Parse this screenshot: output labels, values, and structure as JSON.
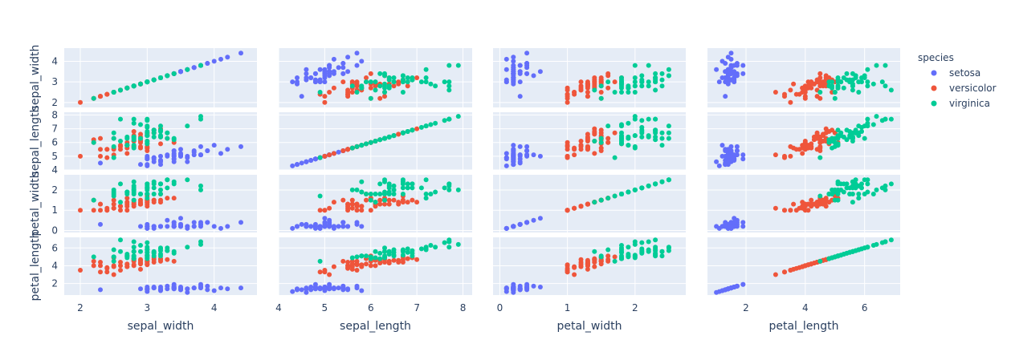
{
  "chart_data": {
    "type": "scatter-matrix",
    "dimensions": [
      "sepal_width",
      "sepal_length",
      "petal_width",
      "petal_length"
    ],
    "axis_ranges": {
      "sepal_width": [
        1.76,
        4.64
      ],
      "sepal_length": [
        4.0,
        8.2
      ],
      "petal_width": [
        -0.1,
        2.75
      ],
      "petal_length": [
        0.7,
        7.2
      ]
    },
    "axis_ticks": {
      "sepal_width": [
        2,
        3,
        4
      ],
      "sepal_length": [
        4,
        5,
        6,
        7,
        8
      ],
      "petal_width": [
        0,
        1,
        2
      ],
      "petal_length": [
        2,
        4,
        6
      ]
    },
    "grid": true,
    "legend": {
      "title": "species",
      "position": "right"
    },
    "series": [
      {
        "name": "setosa",
        "color": "#636efa",
        "points": [
          [
            3.5,
            5.1,
            0.2,
            1.4
          ],
          [
            3.0,
            4.9,
            0.2,
            1.4
          ],
          [
            3.2,
            4.7,
            0.2,
            1.3
          ],
          [
            3.1,
            4.6,
            0.2,
            1.5
          ],
          [
            3.6,
            5.0,
            0.2,
            1.4
          ],
          [
            3.9,
            5.4,
            0.4,
            1.7
          ],
          [
            3.4,
            4.6,
            0.3,
            1.4
          ],
          [
            3.4,
            5.0,
            0.2,
            1.5
          ],
          [
            2.9,
            4.4,
            0.2,
            1.4
          ],
          [
            3.1,
            4.9,
            0.1,
            1.5
          ],
          [
            3.7,
            5.4,
            0.2,
            1.5
          ],
          [
            3.4,
            4.8,
            0.2,
            1.6
          ],
          [
            3.0,
            4.8,
            0.1,
            1.4
          ],
          [
            3.0,
            4.3,
            0.1,
            1.1
          ],
          [
            4.0,
            5.8,
            0.2,
            1.2
          ],
          [
            4.4,
            5.7,
            0.4,
            1.5
          ],
          [
            3.9,
            5.4,
            0.4,
            1.3
          ],
          [
            3.5,
            5.1,
            0.3,
            1.4
          ],
          [
            3.8,
            5.7,
            0.3,
            1.7
          ],
          [
            3.8,
            5.1,
            0.3,
            1.5
          ],
          [
            3.4,
            5.4,
            0.2,
            1.7
          ],
          [
            3.7,
            5.1,
            0.4,
            1.5
          ],
          [
            3.6,
            4.6,
            0.2,
            1.0
          ],
          [
            3.3,
            5.1,
            0.5,
            1.7
          ],
          [
            3.4,
            4.8,
            0.2,
            1.9
          ],
          [
            3.0,
            5.0,
            0.2,
            1.6
          ],
          [
            3.4,
            5.0,
            0.4,
            1.6
          ],
          [
            3.5,
            5.2,
            0.2,
            1.5
          ],
          [
            3.4,
            5.2,
            0.2,
            1.4
          ],
          [
            3.2,
            4.7,
            0.2,
            1.6
          ],
          [
            3.1,
            4.8,
            0.2,
            1.6
          ],
          [
            3.4,
            5.4,
            0.4,
            1.5
          ],
          [
            4.1,
            5.2,
            0.1,
            1.5
          ],
          [
            4.2,
            5.5,
            0.2,
            1.4
          ],
          [
            3.1,
            4.9,
            0.2,
            1.5
          ],
          [
            3.2,
            5.0,
            0.2,
            1.2
          ],
          [
            3.5,
            5.5,
            0.2,
            1.3
          ],
          [
            3.6,
            4.9,
            0.1,
            1.4
          ],
          [
            3.0,
            4.4,
            0.2,
            1.3
          ],
          [
            3.4,
            5.1,
            0.2,
            1.5
          ],
          [
            3.5,
            5.0,
            0.3,
            1.3
          ],
          [
            2.3,
            4.5,
            0.3,
            1.3
          ],
          [
            3.2,
            4.4,
            0.2,
            1.3
          ],
          [
            3.5,
            5.0,
            0.6,
            1.6
          ],
          [
            3.8,
            5.1,
            0.4,
            1.9
          ],
          [
            3.0,
            4.8,
            0.3,
            1.4
          ],
          [
            3.8,
            5.1,
            0.2,
            1.6
          ],
          [
            3.2,
            4.6,
            0.2,
            1.4
          ],
          [
            3.7,
            5.3,
            0.2,
            1.5
          ],
          [
            3.3,
            5.0,
            0.2,
            1.4
          ]
        ]
      },
      {
        "name": "versicolor",
        "color": "#ef553b",
        "points": [
          [
            3.2,
            7.0,
            1.4,
            4.7
          ],
          [
            3.2,
            6.4,
            1.5,
            4.5
          ],
          [
            3.1,
            6.9,
            1.5,
            4.9
          ],
          [
            2.3,
            5.5,
            1.3,
            4.0
          ],
          [
            2.8,
            6.5,
            1.5,
            4.6
          ],
          [
            2.8,
            5.7,
            1.3,
            4.5
          ],
          [
            3.3,
            6.3,
            1.6,
            4.7
          ],
          [
            2.4,
            4.9,
            1.0,
            3.3
          ],
          [
            2.9,
            6.6,
            1.3,
            4.6
          ],
          [
            2.7,
            5.2,
            1.4,
            3.9
          ],
          [
            2.0,
            5.0,
            1.0,
            3.5
          ],
          [
            3.0,
            5.9,
            1.5,
            4.2
          ],
          [
            2.2,
            6.0,
            1.0,
            4.0
          ],
          [
            2.9,
            6.1,
            1.4,
            4.7
          ],
          [
            2.9,
            5.6,
            1.3,
            3.6
          ],
          [
            3.1,
            6.7,
            1.4,
            4.4
          ],
          [
            3.0,
            5.6,
            1.5,
            4.5
          ],
          [
            2.7,
            5.8,
            1.0,
            4.1
          ],
          [
            2.2,
            6.2,
            1.5,
            4.5
          ],
          [
            2.5,
            5.6,
            1.1,
            3.9
          ],
          [
            3.2,
            5.9,
            1.8,
            4.8
          ],
          [
            2.8,
            6.1,
            1.3,
            4.0
          ],
          [
            2.5,
            6.3,
            1.5,
            4.9
          ],
          [
            2.8,
            6.1,
            1.2,
            4.7
          ],
          [
            2.9,
            6.4,
            1.3,
            4.3
          ],
          [
            3.0,
            6.6,
            1.4,
            4.4
          ],
          [
            2.8,
            6.8,
            1.4,
            4.8
          ],
          [
            3.0,
            6.7,
            1.7,
            5.0
          ],
          [
            2.9,
            6.0,
            1.5,
            4.5
          ],
          [
            2.6,
            5.7,
            1.0,
            3.5
          ],
          [
            2.4,
            5.5,
            1.1,
            3.8
          ],
          [
            2.4,
            5.5,
            1.0,
            3.7
          ],
          [
            2.7,
            5.8,
            1.2,
            3.9
          ],
          [
            2.7,
            6.0,
            1.6,
            5.1
          ],
          [
            3.0,
            5.4,
            1.5,
            4.5
          ],
          [
            3.4,
            6.0,
            1.6,
            4.5
          ],
          [
            3.1,
            6.7,
            1.5,
            4.7
          ],
          [
            2.3,
            6.3,
            1.3,
            4.4
          ],
          [
            3.0,
            5.6,
            1.3,
            4.1
          ],
          [
            2.5,
            5.5,
            1.3,
            4.0
          ],
          [
            2.6,
            5.5,
            1.2,
            4.4
          ],
          [
            3.0,
            6.1,
            1.4,
            4.6
          ],
          [
            2.6,
            5.8,
            1.2,
            4.0
          ],
          [
            2.3,
            5.0,
            1.0,
            3.3
          ],
          [
            2.7,
            5.6,
            1.3,
            4.2
          ],
          [
            3.0,
            5.7,
            1.2,
            4.2
          ],
          [
            2.9,
            5.7,
            1.3,
            4.2
          ],
          [
            2.9,
            6.2,
            1.3,
            4.3
          ],
          [
            2.5,
            5.1,
            1.1,
            3.0
          ],
          [
            2.8,
            5.7,
            1.3,
            4.1
          ]
        ]
      },
      {
        "name": "virginica",
        "color": "#00cc96",
        "points": [
          [
            3.3,
            6.3,
            2.5,
            6.0
          ],
          [
            2.7,
            5.8,
            1.9,
            5.1
          ],
          [
            3.0,
            7.1,
            2.1,
            5.9
          ],
          [
            2.9,
            6.3,
            1.8,
            5.6
          ],
          [
            3.0,
            6.5,
            2.2,
            5.8
          ],
          [
            3.0,
            7.6,
            2.1,
            6.6
          ],
          [
            2.5,
            4.9,
            1.7,
            4.5
          ],
          [
            2.9,
            7.3,
            1.8,
            6.3
          ],
          [
            2.5,
            6.7,
            1.8,
            5.8
          ],
          [
            3.6,
            7.2,
            2.5,
            6.1
          ],
          [
            3.2,
            6.5,
            2.0,
            5.1
          ],
          [
            2.7,
            6.4,
            1.9,
            5.3
          ],
          [
            3.0,
            6.8,
            2.1,
            5.5
          ],
          [
            2.5,
            5.7,
            2.0,
            5.0
          ],
          [
            2.8,
            5.8,
            2.4,
            5.1
          ],
          [
            3.2,
            6.4,
            2.3,
            5.3
          ],
          [
            3.0,
            6.5,
            1.8,
            5.5
          ],
          [
            3.8,
            7.7,
            2.2,
            6.7
          ],
          [
            2.6,
            7.7,
            2.3,
            6.9
          ],
          [
            2.2,
            6.0,
            1.5,
            5.0
          ],
          [
            3.2,
            6.9,
            2.3,
            5.7
          ],
          [
            2.8,
            5.6,
            2.0,
            4.9
          ],
          [
            2.8,
            7.7,
            2.0,
            6.7
          ],
          [
            2.7,
            6.3,
            1.8,
            4.9
          ],
          [
            3.3,
            6.7,
            2.1,
            5.7
          ],
          [
            3.2,
            7.2,
            1.8,
            6.0
          ],
          [
            2.8,
            6.2,
            1.8,
            4.8
          ],
          [
            3.0,
            6.1,
            1.8,
            4.9
          ],
          [
            2.8,
            6.4,
            2.1,
            5.6
          ],
          [
            3.0,
            7.2,
            1.6,
            5.8
          ],
          [
            2.8,
            7.4,
            1.9,
            6.1
          ],
          [
            3.8,
            7.9,
            2.0,
            6.4
          ],
          [
            2.8,
            6.4,
            2.2,
            5.6
          ],
          [
            2.8,
            6.3,
            1.5,
            5.1
          ],
          [
            2.6,
            6.1,
            1.4,
            5.6
          ],
          [
            3.0,
            7.7,
            2.3,
            6.1
          ],
          [
            3.4,
            6.3,
            2.4,
            5.6
          ],
          [
            3.1,
            6.4,
            1.8,
            5.5
          ],
          [
            3.0,
            6.0,
            1.8,
            4.8
          ],
          [
            3.1,
            6.9,
            2.1,
            5.4
          ],
          [
            3.1,
            6.7,
            2.4,
            5.6
          ],
          [
            3.1,
            6.9,
            2.3,
            5.1
          ],
          [
            2.7,
            5.8,
            1.9,
            5.1
          ],
          [
            3.2,
            6.8,
            2.3,
            5.9
          ],
          [
            3.3,
            6.7,
            2.5,
            5.7
          ],
          [
            3.0,
            6.7,
            2.3,
            5.2
          ],
          [
            2.5,
            6.3,
            1.9,
            5.0
          ],
          [
            3.0,
            6.5,
            2.0,
            5.2
          ],
          [
            3.4,
            6.2,
            2.3,
            5.4
          ],
          [
            3.0,
            5.9,
            1.8,
            5.1
          ]
        ]
      }
    ]
  }
}
